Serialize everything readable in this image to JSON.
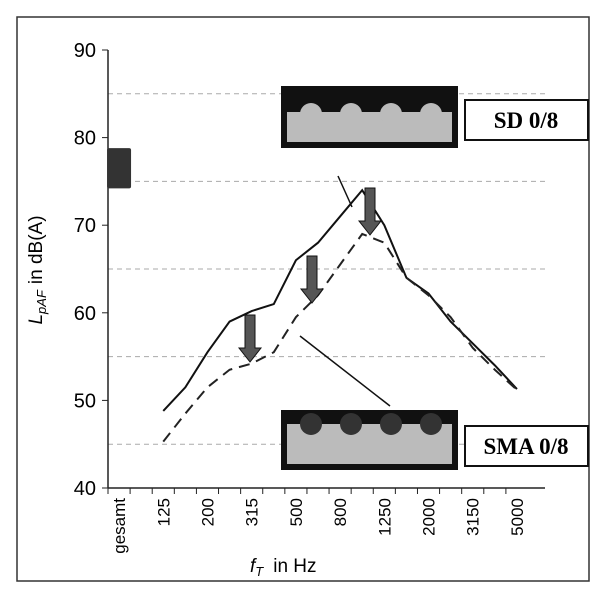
{
  "chart_data": {
    "type": "line",
    "y_label": {
      "symbol": "L",
      "subscript": "pAF",
      "unit": "in dB(A)"
    },
    "x_label": {
      "symbol": "f",
      "subscript": "T",
      "unit": "in Hz"
    },
    "categories": [
      "gesamt",
      null,
      "125",
      null,
      "200",
      null,
      "315",
      null,
      "500",
      null,
      "800",
      null,
      "1250",
      null,
      "2000",
      null,
      "3150",
      null,
      "5000"
    ],
    "series": [
      {
        "name": "SD 0/8",
        "color": "#111111",
        "dash": false,
        "values": [
          null,
          null,
          48.8,
          51.5,
          55.5,
          59,
          60.2,
          61,
          66,
          68,
          71,
          74,
          70,
          64,
          62.2,
          59,
          56.5,
          54,
          51.3
        ]
      },
      {
        "name": "SMA 0/8",
        "color": "#222222",
        "dash": true,
        "values": [
          null,
          null,
          45.3,
          48.5,
          51.5,
          53.5,
          54.2,
          55.5,
          59.5,
          62,
          65.5,
          69,
          68,
          64,
          62,
          59.5,
          56,
          53.5,
          51.2
        ]
      }
    ],
    "gesamt_range": [
      74.2,
      78.8
    ],
    "ylim": [
      40,
      90
    ],
    "yticks": [
      40,
      50,
      60,
      70,
      80,
      90
    ],
    "minor_yticks": [
      45,
      55,
      65,
      75,
      85
    ],
    "grid": true
  }
}
